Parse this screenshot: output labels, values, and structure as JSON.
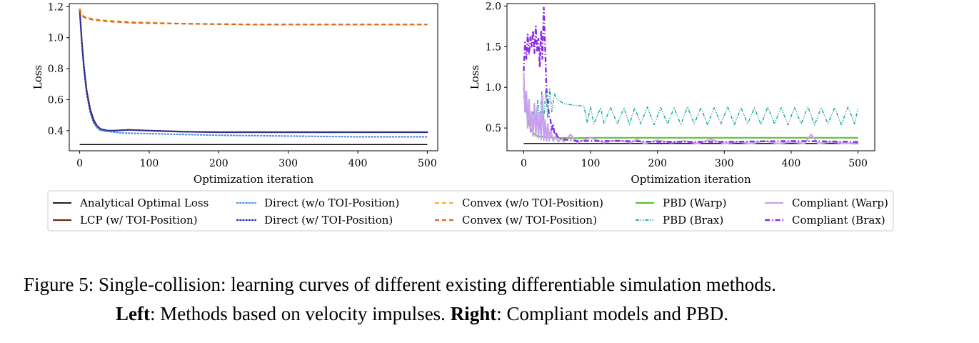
{
  "caption": {
    "line1": "Figure 5:  Single-collision: learning curves of different existing differentiable simulation methods.",
    "left_label": "Left",
    "left_text": ": Methods based on velocity impulses. ",
    "right_label": "Right",
    "right_text": ": Compliant models and PBD."
  },
  "legend": {
    "entries": [
      {
        "label": "Analytical Optimal Loss",
        "color": "#000000",
        "style": "solid-thin"
      },
      {
        "label": "LCP (w/ TOI-Position)",
        "color": "#6b2f0a",
        "style": "solid"
      },
      {
        "label": "Direct (w/o TOI-Position)",
        "color": "#4a90e2",
        "style": "dotted"
      },
      {
        "label": "Direct (w/ TOI-Position)",
        "color": "#1f2fbf",
        "style": "dotted"
      },
      {
        "label": "Convex (w/o TOI-Position)",
        "color": "#f2b632",
        "style": "dashed"
      },
      {
        "label": "Convex (w/ TOI-Position)",
        "color": "#d9652b",
        "style": "dashed"
      },
      {
        "label": "PBD (Warp)",
        "color": "#5cc23a",
        "style": "solid"
      },
      {
        "label": "PBD (Brax)",
        "color": "#19a39a",
        "style": "dashdotdot"
      },
      {
        "label": "Compliant (Warp)",
        "color": "#c9a0f0",
        "style": "solid"
      },
      {
        "label": "Compliant (Brax)",
        "color": "#8a2be2",
        "style": "dashdot"
      }
    ]
  },
  "chart_data": [
    {
      "type": "line",
      "xlabel": "Optimization iteration",
      "ylabel": "Loss",
      "xlim": [
        -15,
        515
      ],
      "ylim": [
        0.27,
        1.22
      ],
      "xticks": [
        0,
        100,
        200,
        300,
        400,
        500
      ],
      "yticks": [
        0.4,
        0.6,
        0.8,
        1.0,
        1.2
      ],
      "grid": false,
      "series": [
        {
          "name": "Analytical Optimal Loss",
          "color": "#000000",
          "style": "solid-thin",
          "x": [
            0,
            500
          ],
          "y": [
            0.31,
            0.31
          ]
        },
        {
          "name": "LCP (w/ TOI-Position)",
          "color": "#6b2f0a",
          "style": "solid",
          "x": [
            0,
            3,
            6,
            10,
            15,
            20,
            25,
            30,
            40,
            50,
            70,
            100,
            150,
            200,
            300,
            400,
            500
          ],
          "y": [
            1.18,
            0.98,
            0.82,
            0.66,
            0.54,
            0.47,
            0.43,
            0.41,
            0.4,
            0.4,
            0.405,
            0.4,
            0.393,
            0.39,
            0.39,
            0.39,
            0.39
          ]
        },
        {
          "name": "Direct (w/o TOI-Position)",
          "color": "#4a90e2",
          "style": "dotted",
          "x": [
            0,
            3,
            6,
            10,
            15,
            20,
            25,
            30,
            40,
            60,
            100,
            150,
            200,
            300,
            400,
            500
          ],
          "y": [
            1.18,
            0.98,
            0.8,
            0.64,
            0.52,
            0.45,
            0.42,
            0.4,
            0.395,
            0.385,
            0.38,
            0.375,
            0.37,
            0.365,
            0.36,
            0.36
          ]
        },
        {
          "name": "Direct (w/ TOI-Position)",
          "color": "#1f2fbf",
          "style": "dotted",
          "x": [
            0,
            3,
            6,
            10,
            15,
            20,
            25,
            30,
            40,
            50,
            70,
            100,
            150,
            200,
            300,
            400,
            500
          ],
          "y": [
            1.18,
            0.97,
            0.81,
            0.65,
            0.53,
            0.46,
            0.43,
            0.41,
            0.4,
            0.4,
            0.405,
            0.4,
            0.393,
            0.39,
            0.39,
            0.39,
            0.39
          ]
        },
        {
          "name": "Convex (w/o TOI-Position)",
          "color": "#f2b632",
          "style": "dashed",
          "x": [
            0,
            2,
            5,
            10,
            20,
            40,
            80,
            150,
            250,
            350,
            500
          ],
          "y": [
            1.19,
            1.16,
            1.14,
            1.13,
            1.12,
            1.11,
            1.1,
            1.09,
            1.085,
            1.085,
            1.085
          ]
        },
        {
          "name": "Convex (w/ TOI-Position)",
          "color": "#d9652b",
          "style": "dashed",
          "x": [
            0,
            2,
            5,
            10,
            20,
            40,
            80,
            150,
            250,
            350,
            500
          ],
          "y": [
            1.18,
            1.15,
            1.135,
            1.125,
            1.115,
            1.105,
            1.095,
            1.09,
            1.085,
            1.085,
            1.085
          ]
        }
      ]
    },
    {
      "type": "line",
      "xlabel": "Optimization iteration",
      "ylabel": "Loss",
      "xlim": [
        -25,
        525
      ],
      "ylim": [
        0.22,
        2.03
      ],
      "xticks": [
        0,
        100,
        200,
        300,
        400,
        500
      ],
      "yticks": [
        0.5,
        1.0,
        1.5,
        2.0
      ],
      "grid": false,
      "series": [
        {
          "name": "Analytical Optimal Loss",
          "color": "#000000",
          "style": "solid-thin",
          "x": [
            0,
            500
          ],
          "y": [
            0.31,
            0.31
          ]
        },
        {
          "name": "PBD (Warp)",
          "color": "#5cc23a",
          "style": "solid",
          "x": [
            0,
            3,
            6,
            10,
            15,
            20,
            30,
            50,
            80,
            100,
            150,
            200,
            300,
            400,
            500
          ],
          "y": [
            1.0,
            0.8,
            0.62,
            0.5,
            0.43,
            0.4,
            0.39,
            0.38,
            0.375,
            0.38,
            0.38,
            0.38,
            0.38,
            0.38,
            0.38
          ]
        },
        {
          "name": "PBD (Brax)",
          "color": "#19a39a",
          "style": "dashdotdot",
          "x": [
            0,
            3,
            6,
            10,
            14,
            18,
            21,
            24,
            27,
            30,
            33,
            36,
            39,
            42,
            46,
            50,
            60,
            75,
            90,
            95,
            100,
            105,
            115,
            120,
            130,
            140,
            150,
            158,
            166,
            175,
            185,
            195,
            205,
            215,
            225,
            235,
            245,
            255,
            265,
            275,
            285,
            295,
            305,
            315,
            325,
            335,
            345,
            355,
            365,
            375,
            385,
            395,
            405,
            415,
            425,
            435,
            445,
            455,
            465,
            475,
            485,
            495,
            500
          ],
          "y": [
            0.9,
            0.75,
            0.6,
            0.55,
            0.7,
            0.6,
            0.85,
            0.55,
            0.95,
            0.6,
            0.97,
            0.62,
            0.99,
            0.7,
            0.92,
            0.85,
            0.8,
            0.78,
            0.77,
            0.57,
            0.76,
            0.55,
            0.75,
            0.56,
            0.75,
            0.55,
            0.75,
            0.54,
            0.75,
            0.55,
            0.76,
            0.54,
            0.75,
            0.55,
            0.75,
            0.54,
            0.76,
            0.55,
            0.75,
            0.54,
            0.75,
            0.55,
            0.76,
            0.54,
            0.75,
            0.55,
            0.75,
            0.54,
            0.76,
            0.55,
            0.75,
            0.54,
            0.75,
            0.55,
            0.76,
            0.54,
            0.75,
            0.55,
            0.75,
            0.54,
            0.76,
            0.55,
            0.75
          ]
        },
        {
          "name": "Compliant (Warp)",
          "color": "#c9a0f0",
          "style": "solid",
          "x": [
            0,
            2,
            4,
            6,
            8,
            10,
            12,
            14,
            16,
            18,
            20,
            22,
            24,
            26,
            28,
            30,
            32,
            34,
            36,
            38,
            40,
            44,
            48,
            52,
            56,
            60,
            70,
            80,
            100,
            120,
            140,
            160,
            170,
            180,
            200,
            220,
            240,
            260,
            280,
            300,
            320,
            340,
            360,
            380,
            400,
            420,
            430,
            440,
            460,
            480,
            500
          ],
          "y": [
            1.18,
            0.7,
            0.95,
            0.5,
            0.85,
            0.45,
            0.7,
            0.4,
            0.8,
            0.4,
            0.75,
            0.38,
            0.68,
            0.36,
            0.9,
            0.35,
            0.6,
            0.34,
            0.55,
            0.34,
            0.48,
            0.34,
            0.4,
            0.33,
            0.38,
            0.33,
            0.42,
            0.32,
            0.38,
            0.32,
            0.35,
            0.32,
            0.36,
            0.31,
            0.35,
            0.32,
            0.34,
            0.31,
            0.36,
            0.31,
            0.33,
            0.31,
            0.34,
            0.31,
            0.33,
            0.31,
            0.42,
            0.31,
            0.33,
            0.31,
            0.32
          ]
        },
        {
          "name": "Compliant (Brax)",
          "color": "#8a2be2",
          "style": "dashdot",
          "x": [
            0,
            2,
            4,
            6,
            8,
            10,
            12,
            14,
            16,
            18,
            20,
            22,
            24,
            26,
            28,
            30,
            32,
            34,
            36,
            38,
            40,
            42,
            44,
            46,
            48,
            50,
            55,
            60,
            70,
            80,
            100,
            150,
            200,
            300,
            400,
            500
          ],
          "y": [
            1.2,
            1.55,
            1.35,
            1.65,
            1.4,
            1.62,
            1.5,
            1.7,
            1.42,
            1.75,
            1.45,
            1.6,
            1.25,
            1.7,
            1.35,
            1.98,
            1.5,
            1.0,
            0.8,
            0.65,
            0.6,
            0.48,
            0.55,
            0.42,
            0.45,
            0.4,
            0.37,
            0.36,
            0.35,
            0.34,
            0.34,
            0.34,
            0.33,
            0.33,
            0.34,
            0.33
          ]
        }
      ]
    }
  ]
}
